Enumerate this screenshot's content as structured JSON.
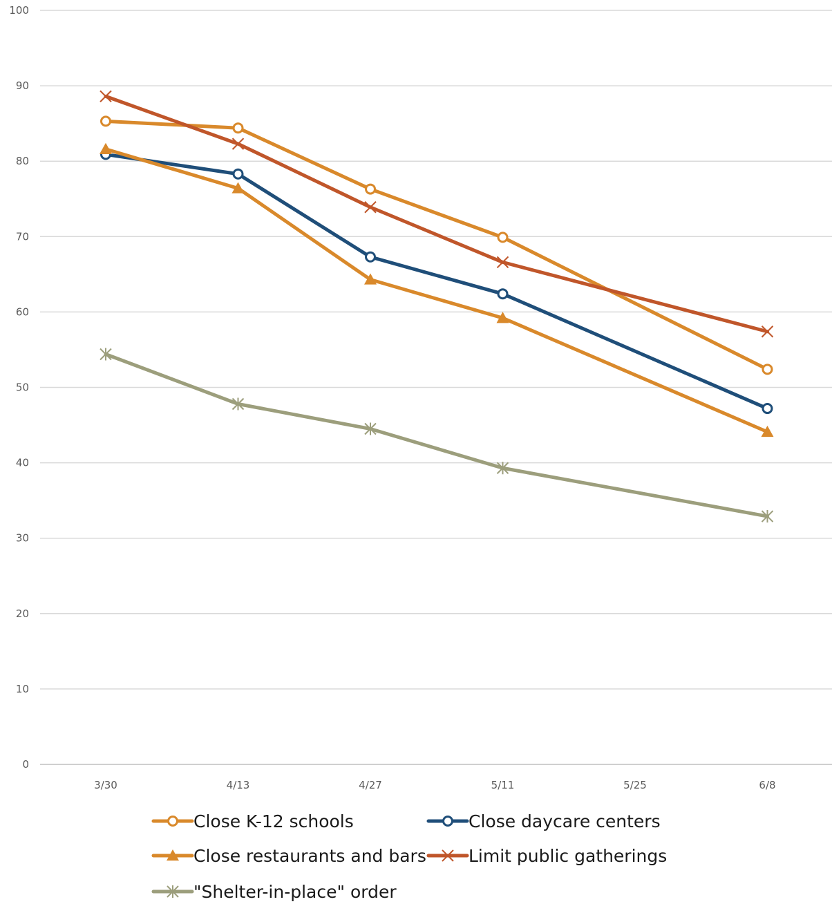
{
  "chart_data": {
    "type": "line",
    "title": "",
    "xlabel": "",
    "ylabel": "",
    "categories": [
      "3/30",
      "4/13",
      "4/27",
      "5/11",
      "5/25",
      "6/8"
    ],
    "ylim": [
      0,
      100
    ],
    "yticks": [
      0,
      10,
      20,
      30,
      40,
      50,
      60,
      70,
      80,
      90,
      100
    ],
    "grid": true,
    "legend_position": "bottom",
    "series": [
      {
        "name": "Close K-12 schools",
        "color": "#D9892B",
        "marker": "circle-open",
        "values": [
          85.3,
          84.4,
          76.3,
          69.9,
          null,
          52.4
        ]
      },
      {
        "name": "Close daycare centers",
        "color": "#1F4E79",
        "marker": "circle-open",
        "values": [
          80.9,
          78.3,
          67.3,
          62.4,
          null,
          47.2
        ]
      },
      {
        "name": "Close restaurants and bars",
        "color": "#D9892B",
        "marker": "triangle",
        "values": [
          81.6,
          76.4,
          64.3,
          59.2,
          null,
          44.1
        ]
      },
      {
        "name": "Limit public gatherings",
        "color": "#C0562A",
        "marker": "x",
        "values": [
          88.6,
          82.3,
          73.9,
          66.6,
          null,
          57.4
        ]
      },
      {
        "name": "\"Shelter-in-place\" order",
        "color": "#9C9E7C",
        "marker": "star",
        "values": [
          54.4,
          47.8,
          44.5,
          39.3,
          null,
          32.9
        ]
      }
    ]
  }
}
